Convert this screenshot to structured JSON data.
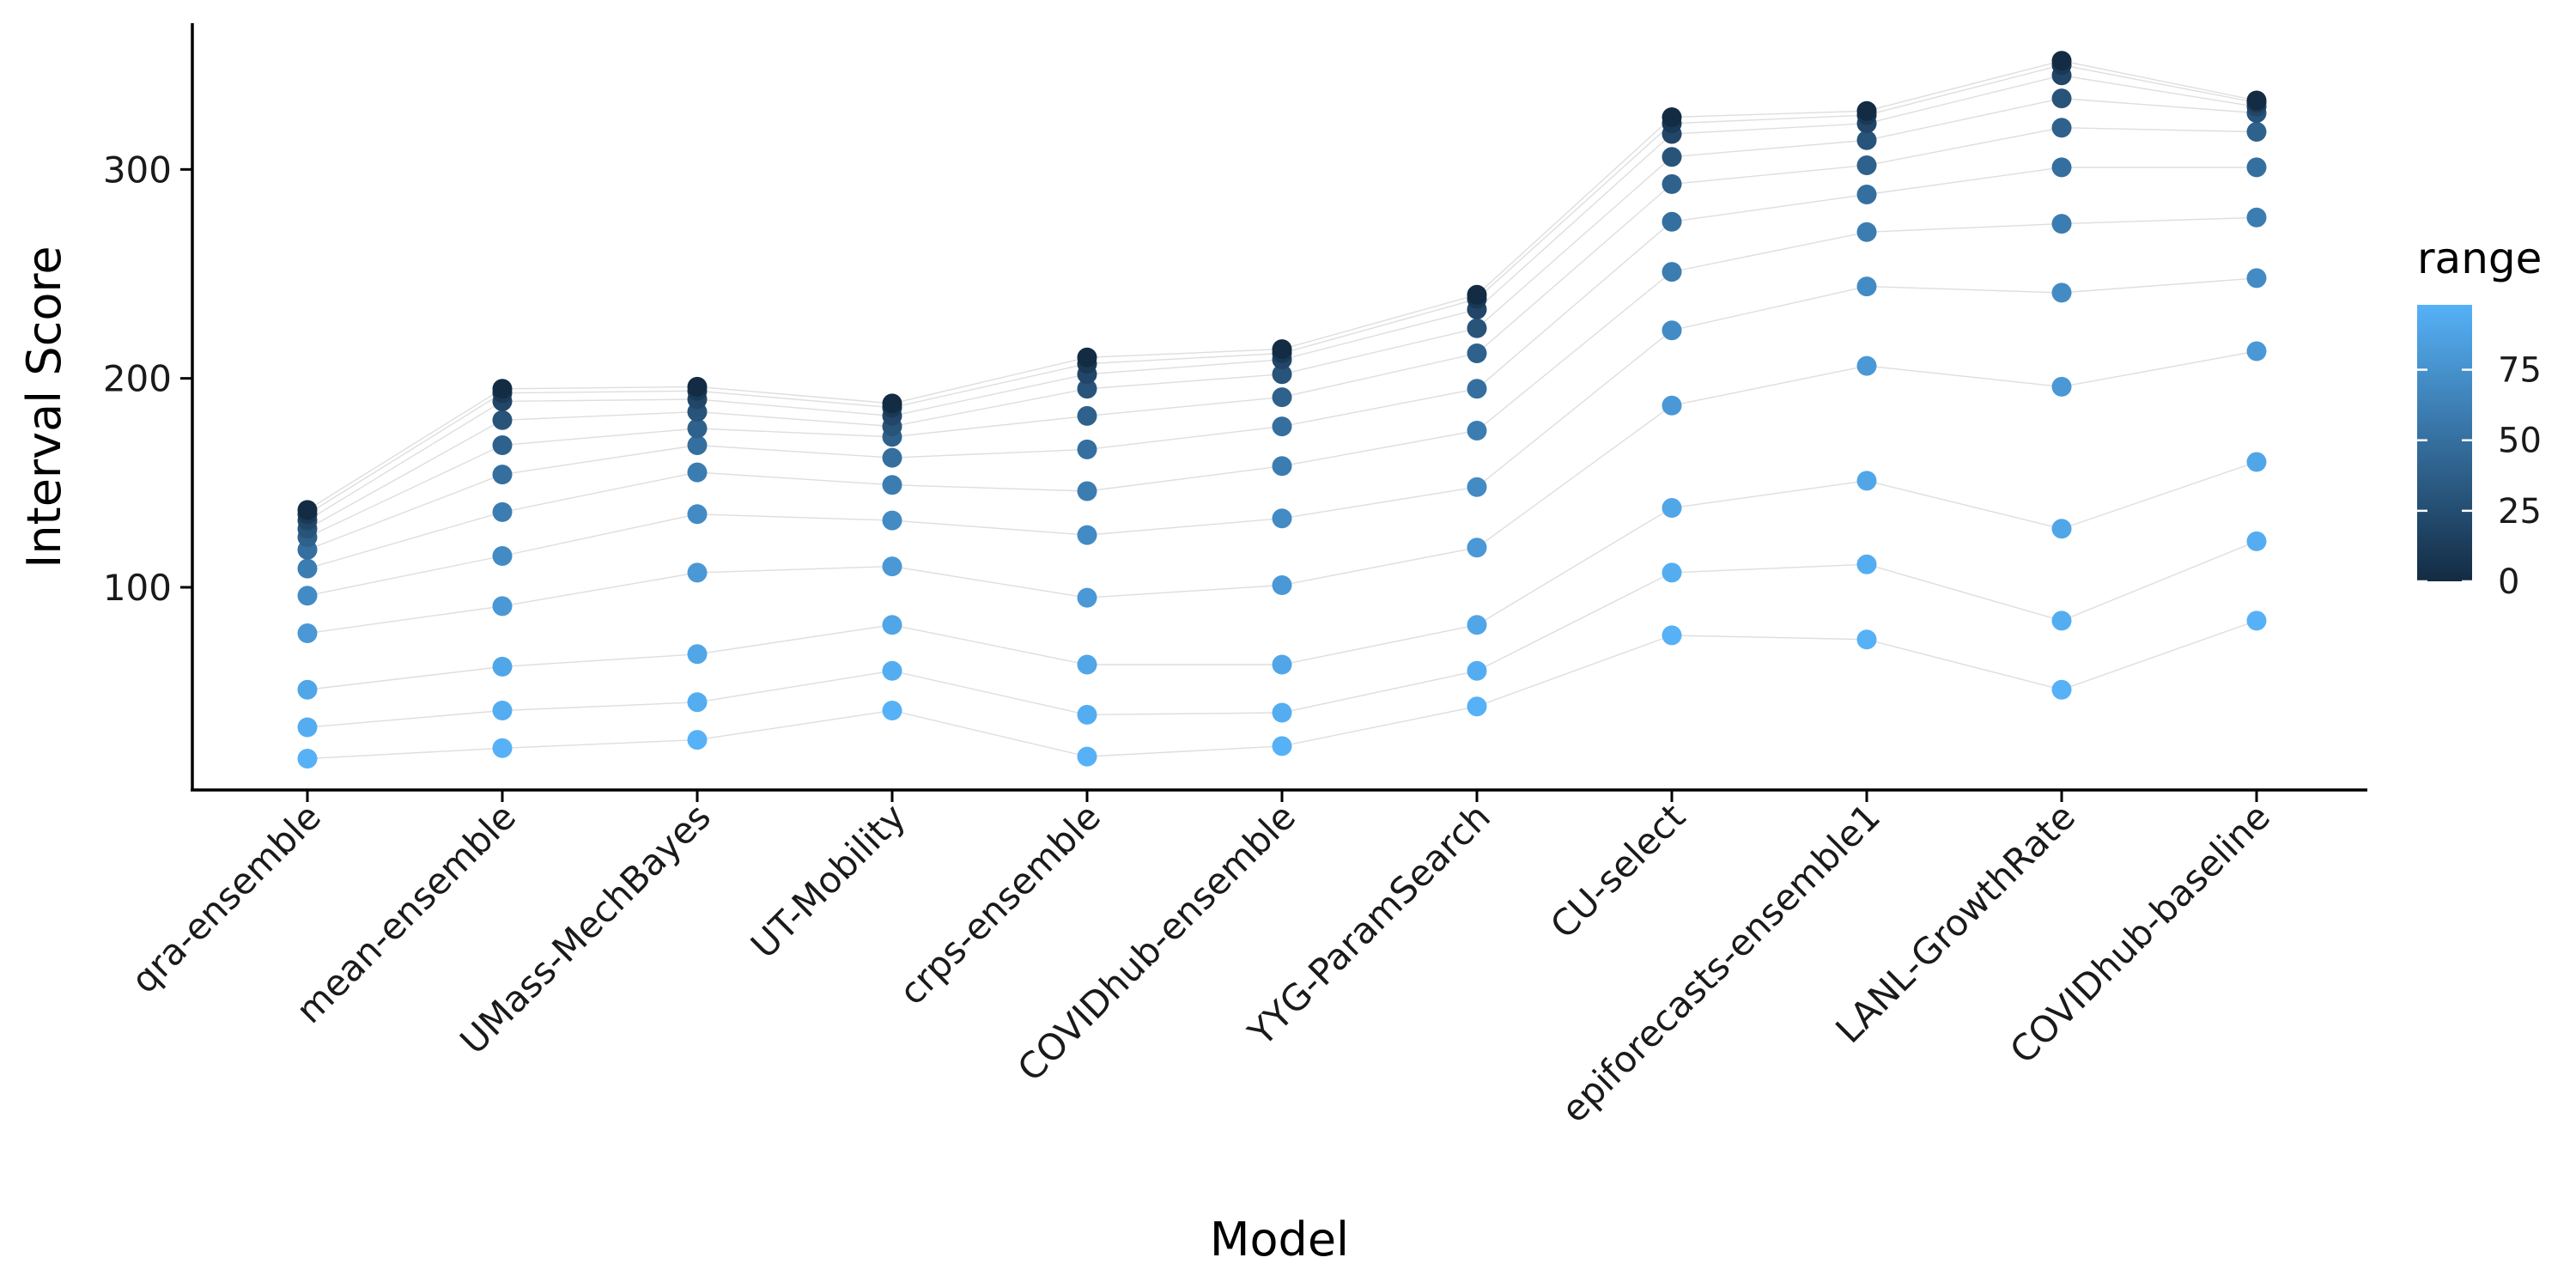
{
  "chart_data": {
    "type": "scatter",
    "xlabel": "Model",
    "ylabel": "Interval Score",
    "categories": [
      "qra-ensemble",
      "mean-ensemble",
      "UMass-MechBayes",
      "UT-Mobility",
      "crps-ensemble",
      "COVIDhub-ensemble",
      "YYG-ParamSearch",
      "CU-select",
      "epiforecasts-ensemble1",
      "LANL-GrowthRate",
      "COVIDhub-baseline"
    ],
    "ylim": [
      3,
      370
    ],
    "yticks": [
      100,
      200,
      300
    ],
    "grid": false,
    "legend": {
      "title": "range",
      "position": "right",
      "ticks": [
        0,
        25,
        50,
        75
      ],
      "range": [
        0,
        98
      ],
      "color_low": "#132B43",
      "color_high": "#56B1F7"
    },
    "series": [
      {
        "range": 98,
        "values": [
          18,
          23,
          27,
          41,
          19,
          24,
          43,
          77,
          75,
          51,
          84
        ]
      },
      {
        "range": 95,
        "values": [
          33,
          41,
          45,
          60,
          39,
          40,
          60,
          107,
          111,
          84,
          122
        ]
      },
      {
        "range": 90,
        "values": [
          51,
          62,
          68,
          82,
          63,
          63,
          82,
          138,
          151,
          128,
          160
        ]
      },
      {
        "range": 80,
        "values": [
          78,
          91,
          107,
          110,
          95,
          101,
          119,
          187,
          206,
          196,
          213
        ]
      },
      {
        "range": 70,
        "values": [
          96,
          115,
          135,
          132,
          125,
          133,
          148,
          223,
          244,
          241,
          248
        ]
      },
      {
        "range": 60,
        "values": [
          109,
          136,
          155,
          149,
          146,
          158,
          175,
          251,
          270,
          274,
          277
        ]
      },
      {
        "range": 50,
        "values": [
          118,
          154,
          168,
          162,
          166,
          177,
          195,
          275,
          288,
          301,
          301
        ]
      },
      {
        "range": 40,
        "values": [
          124,
          168,
          176,
          172,
          182,
          191,
          212,
          293,
          302,
          320,
          318
        ]
      },
      {
        "range": 30,
        "values": [
          128,
          180,
          184,
          177,
          195,
          202,
          224,
          306,
          314,
          334,
          327
        ]
      },
      {
        "range": 20,
        "values": [
          132,
          189,
          190,
          182,
          202,
          209,
          233,
          317,
          322,
          345,
          330
        ]
      },
      {
        "range": 10,
        "values": [
          135,
          193,
          194,
          186,
          207,
          212,
          238,
          322,
          326,
          350,
          332
        ]
      },
      {
        "range": 0,
        "values": [
          137,
          195,
          196,
          188,
          210,
          214,
          240,
          325,
          328,
          352,
          333
        ]
      }
    ]
  }
}
